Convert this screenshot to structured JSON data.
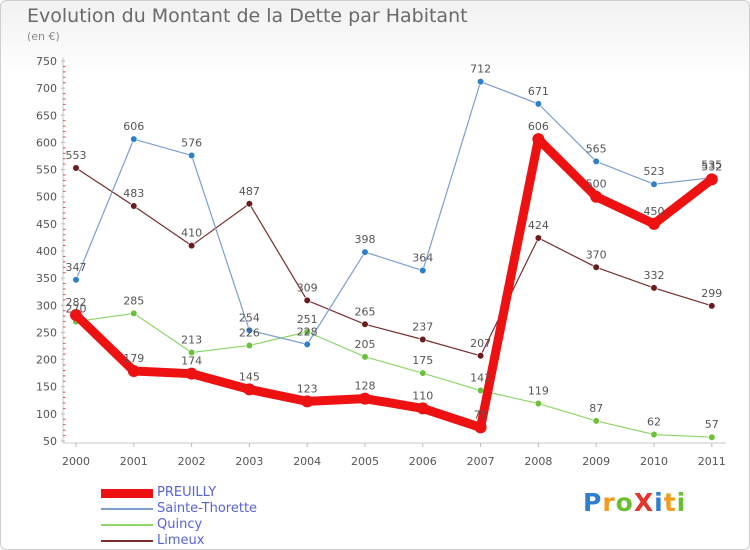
{
  "title": "Evolution du Montant de la Dette par Habitant",
  "subtitle": "(en €)",
  "logo": {
    "text": "ProXiti",
    "letters": [
      {
        "ch": "P",
        "color": "#2f7fd0"
      },
      {
        "ch": "r",
        "color": "#f39b1d"
      },
      {
        "ch": "o",
        "color": "#6bbf2e"
      },
      {
        "ch": "X",
        "color": "#e3352c"
      },
      {
        "ch": "i",
        "color": "#2f7fd0"
      },
      {
        "ch": "t",
        "color": "#f39b1d"
      },
      {
        "ch": "i",
        "color": "#6bbf2e"
      }
    ]
  },
  "chart_data": {
    "type": "line",
    "title": "Evolution du Montant de la Dette par Habitant",
    "subtitle": "(en €)",
    "x": [
      "2000",
      "2001",
      "2002",
      "2003",
      "2004",
      "2005",
      "2006",
      "2007",
      "2008",
      "2009",
      "2010",
      "2011"
    ],
    "yticks": [
      50,
      100,
      150,
      200,
      250,
      300,
      350,
      400,
      450,
      500,
      550,
      600,
      650,
      700,
      750
    ],
    "ylim": [
      50,
      750
    ],
    "grid": false,
    "legend_position": "bottom-left",
    "series": [
      {
        "name": "PREUILLY",
        "color": "#ee1111",
        "values": [
          282,
          179,
          174,
          145,
          123,
          128,
          110,
          75,
          606,
          500,
          450,
          532
        ]
      },
      {
        "name": "Sainte-Thorette",
        "color": "#7a9fd0",
        "values": [
          347,
          606,
          576,
          254,
          228,
          398,
          364,
          712,
          671,
          565,
          523,
          535
        ]
      },
      {
        "name": "Quincy",
        "color": "#8fd66a",
        "values": [
          270,
          285,
          213,
          226,
          251,
          205,
          175,
          143,
          119,
          87,
          62,
          57
        ]
      },
      {
        "name": "Limeux",
        "color": "#7a2d2d",
        "values": [
          553,
          483,
          410,
          487,
          309,
          265,
          237,
          207,
          424,
          370,
          332,
          299
        ]
      }
    ],
    "labels": [
      {
        "series": 0,
        "labels": [
          "282",
          "179",
          "174",
          "145",
          "123",
          "128",
          "110",
          "75",
          "606",
          "500",
          "450",
          "532"
        ]
      },
      {
        "series": 1,
        "labels": [
          "347",
          "606",
          "576",
          "254",
          "228",
          "398",
          "364",
          "712",
          "671",
          "565",
          "523",
          "535"
        ]
      },
      {
        "series": 2,
        "labels": [
          "270",
          "285",
          "213",
          "226",
          "251",
          "205",
          "175",
          "143",
          "119",
          "87",
          "62",
          "57"
        ]
      },
      {
        "series": 3,
        "labels": [
          "553",
          "483",
          "410",
          "487",
          "309",
          "265",
          "237",
          "207",
          "424",
          "370",
          "332",
          "299"
        ]
      }
    ]
  }
}
